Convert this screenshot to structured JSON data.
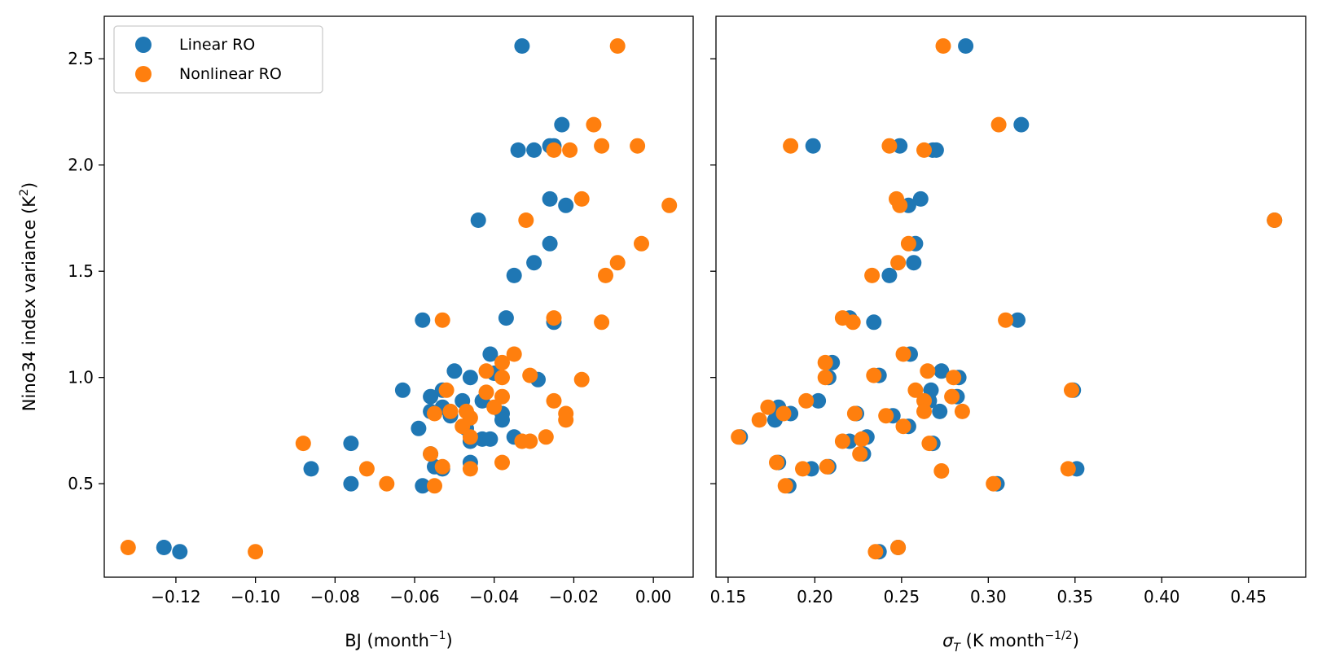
{
  "chart_data": [
    {
      "type": "scatter",
      "xlabel_main": "BJ (month",
      "xlabel_sup": "−1",
      "xlabel_tail": ")",
      "ylabel_main": "Nino34 index variance (K",
      "ylabel_sup": "2",
      "ylabel_tail": ")",
      "xlim": [
        -0.138,
        0.01
      ],
      "ylim": [
        0.06,
        2.7
      ],
      "xticks": [
        -0.12,
        -0.1,
        -0.08,
        -0.06,
        -0.04,
        -0.02,
        0.0
      ],
      "xtick_labels": [
        "−0.12",
        "−0.10",
        "−0.08",
        "−0.06",
        "−0.04",
        "−0.02",
        "0.00"
      ],
      "yticks": [
        0.5,
        1.0,
        1.5,
        2.0,
        2.5
      ],
      "ytick_labels": [
        "0.5",
        "1.0",
        "1.5",
        "2.0",
        "2.5"
      ],
      "legend": {
        "placement": "top-left",
        "entries": [
          "Linear RO",
          "Nonlinear RO"
        ]
      },
      "series": [
        {
          "name": "Linear RO",
          "color": "#1f77b4",
          "points": [
            [
              -0.033,
              2.56
            ],
            [
              -0.023,
              2.19
            ],
            [
              -0.034,
              2.07
            ],
            [
              -0.03,
              2.07
            ],
            [
              -0.026,
              2.09
            ],
            [
              -0.025,
              2.09
            ],
            [
              -0.026,
              1.84
            ],
            [
              -0.022,
              1.81
            ],
            [
              -0.044,
              1.74
            ],
            [
              -0.026,
              1.63
            ],
            [
              -0.03,
              1.54
            ],
            [
              -0.035,
              1.48
            ],
            [
              -0.058,
              1.27
            ],
            [
              -0.037,
              1.28
            ],
            [
              -0.025,
              1.26
            ],
            [
              -0.041,
              1.11
            ],
            [
              -0.05,
              1.03
            ],
            [
              -0.04,
              1.02
            ],
            [
              -0.046,
              1.0
            ],
            [
              -0.029,
              0.99
            ],
            [
              -0.063,
              0.94
            ],
            [
              -0.053,
              0.94
            ],
            [
              -0.056,
              0.91
            ],
            [
              -0.048,
              0.89
            ],
            [
              -0.043,
              0.89
            ],
            [
              -0.053,
              0.86
            ],
            [
              -0.056,
              0.84
            ],
            [
              -0.051,
              0.82
            ],
            [
              -0.038,
              0.83
            ],
            [
              -0.038,
              0.8
            ],
            [
              -0.059,
              0.76
            ],
            [
              -0.047,
              0.76
            ],
            [
              -0.043,
              0.71
            ],
            [
              -0.041,
              0.71
            ],
            [
              -0.035,
              0.72
            ],
            [
              -0.046,
              0.7
            ],
            [
              -0.076,
              0.69
            ],
            [
              -0.056,
              0.64
            ],
            [
              -0.046,
              0.6
            ],
            [
              -0.086,
              0.57
            ],
            [
              -0.055,
              0.58
            ],
            [
              -0.053,
              0.57
            ],
            [
              -0.076,
              0.5
            ],
            [
              -0.058,
              0.49
            ],
            [
              -0.123,
              0.2
            ],
            [
              -0.119,
              0.18
            ]
          ]
        },
        {
          "name": "Nonlinear RO",
          "color": "#ff7f0e",
          "points": [
            [
              -0.009,
              2.56
            ],
            [
              -0.015,
              2.19
            ],
            [
              -0.025,
              2.07
            ],
            [
              -0.021,
              2.07
            ],
            [
              -0.013,
              2.09
            ],
            [
              -0.004,
              2.09
            ],
            [
              -0.018,
              1.84
            ],
            [
              0.004,
              1.81
            ],
            [
              -0.032,
              1.74
            ],
            [
              -0.003,
              1.63
            ],
            [
              -0.009,
              1.54
            ],
            [
              -0.012,
              1.48
            ],
            [
              -0.053,
              1.27
            ],
            [
              -0.025,
              1.28
            ],
            [
              -0.013,
              1.26
            ],
            [
              -0.035,
              1.11
            ],
            [
              -0.042,
              1.03
            ],
            [
              -0.038,
              1.07
            ],
            [
              -0.038,
              1.0
            ],
            [
              -0.031,
              1.01
            ],
            [
              -0.018,
              0.99
            ],
            [
              -0.052,
              0.94
            ],
            [
              -0.042,
              0.93
            ],
            [
              -0.038,
              0.91
            ],
            [
              -0.025,
              0.89
            ],
            [
              -0.04,
              0.86
            ],
            [
              -0.055,
              0.83
            ],
            [
              -0.051,
              0.84
            ],
            [
              -0.047,
              0.84
            ],
            [
              -0.046,
              0.81
            ],
            [
              -0.022,
              0.83
            ],
            [
              -0.022,
              0.8
            ],
            [
              -0.048,
              0.77
            ],
            [
              -0.046,
              0.72
            ],
            [
              -0.033,
              0.7
            ],
            [
              -0.031,
              0.7
            ],
            [
              -0.027,
              0.72
            ],
            [
              -0.088,
              0.69
            ],
            [
              -0.056,
              0.64
            ],
            [
              -0.038,
              0.6
            ],
            [
              -0.072,
              0.57
            ],
            [
              -0.053,
              0.58
            ],
            [
              -0.046,
              0.57
            ],
            [
              -0.067,
              0.5
            ],
            [
              -0.055,
              0.49
            ],
            [
              -0.132,
              0.2
            ],
            [
              -0.1,
              0.18
            ]
          ]
        }
      ]
    },
    {
      "type": "scatter",
      "xlabel_sym": "σ",
      "xlabel_sub": "T",
      "xlabel_main": " (K month",
      "xlabel_sup": "−1/2",
      "xlabel_tail": ")",
      "xlim": [
        0.143,
        0.483
      ],
      "ylim": [
        0.06,
        2.7
      ],
      "xticks": [
        0.15,
        0.2,
        0.25,
        0.3,
        0.35,
        0.4,
        0.45
      ],
      "xtick_labels": [
        "0.15",
        "0.20",
        "0.25",
        "0.30",
        "0.35",
        "0.40",
        "0.45"
      ],
      "yticks": [
        0.5,
        1.0,
        1.5,
        2.0,
        2.5
      ],
      "shared_y": true,
      "series": [
        {
          "name": "Linear RO",
          "color": "#1f77b4",
          "points": [
            [
              0.287,
              2.56
            ],
            [
              0.319,
              2.19
            ],
            [
              0.199,
              2.09
            ],
            [
              0.249,
              2.09
            ],
            [
              0.268,
              2.07
            ],
            [
              0.27,
              2.07
            ],
            [
              0.261,
              1.84
            ],
            [
              0.254,
              1.81
            ],
            [
              0.465,
              1.74
            ],
            [
              0.258,
              1.63
            ],
            [
              0.257,
              1.54
            ],
            [
              0.243,
              1.48
            ],
            [
              0.22,
              1.28
            ],
            [
              0.317,
              1.27
            ],
            [
              0.234,
              1.26
            ],
            [
              0.255,
              1.11
            ],
            [
              0.21,
              1.07
            ],
            [
              0.273,
              1.03
            ],
            [
              0.237,
              1.01
            ],
            [
              0.208,
              1.0
            ],
            [
              0.283,
              1.0
            ],
            [
              0.267,
              0.94
            ],
            [
              0.349,
              0.94
            ],
            [
              0.282,
              0.91
            ],
            [
              0.202,
              0.89
            ],
            [
              0.266,
              0.89
            ],
            [
              0.179,
              0.86
            ],
            [
              0.186,
              0.83
            ],
            [
              0.224,
              0.83
            ],
            [
              0.245,
              0.82
            ],
            [
              0.272,
              0.84
            ],
            [
              0.177,
              0.8
            ],
            [
              0.254,
              0.77
            ],
            [
              0.157,
              0.72
            ],
            [
              0.23,
              0.72
            ],
            [
              0.22,
              0.7
            ],
            [
              0.268,
              0.69
            ],
            [
              0.228,
              0.64
            ],
            [
              0.179,
              0.6
            ],
            [
              0.351,
              0.57
            ],
            [
              0.198,
              0.57
            ],
            [
              0.208,
              0.58
            ],
            [
              0.305,
              0.5
            ],
            [
              0.185,
              0.49
            ],
            [
              0.248,
              0.2
            ],
            [
              0.237,
              0.18
            ]
          ]
        },
        {
          "name": "Nonlinear RO",
          "color": "#ff7f0e",
          "points": [
            [
              0.274,
              2.56
            ],
            [
              0.306,
              2.19
            ],
            [
              0.186,
              2.09
            ],
            [
              0.243,
              2.09
            ],
            [
              0.263,
              2.07
            ],
            [
              0.247,
              1.84
            ],
            [
              0.249,
              1.81
            ],
            [
              0.465,
              1.74
            ],
            [
              0.254,
              1.63
            ],
            [
              0.248,
              1.54
            ],
            [
              0.233,
              1.48
            ],
            [
              0.216,
              1.28
            ],
            [
              0.31,
              1.27
            ],
            [
              0.222,
              1.26
            ],
            [
              0.251,
              1.11
            ],
            [
              0.206,
              1.07
            ],
            [
              0.265,
              1.03
            ],
            [
              0.234,
              1.01
            ],
            [
              0.206,
              1.0
            ],
            [
              0.28,
              1.0
            ],
            [
              0.258,
              0.94
            ],
            [
              0.348,
              0.94
            ],
            [
              0.279,
              0.91
            ],
            [
              0.195,
              0.89
            ],
            [
              0.263,
              0.89
            ],
            [
              0.173,
              0.86
            ],
            [
              0.263,
              0.84
            ],
            [
              0.285,
              0.84
            ],
            [
              0.182,
              0.83
            ],
            [
              0.223,
              0.83
            ],
            [
              0.241,
              0.82
            ],
            [
              0.168,
              0.8
            ],
            [
              0.251,
              0.77
            ],
            [
              0.156,
              0.72
            ],
            [
              0.227,
              0.71
            ],
            [
              0.216,
              0.7
            ],
            [
              0.266,
              0.69
            ],
            [
              0.226,
              0.64
            ],
            [
              0.178,
              0.6
            ],
            [
              0.346,
              0.57
            ],
            [
              0.193,
              0.57
            ],
            [
              0.207,
              0.58
            ],
            [
              0.303,
              0.5
            ],
            [
              0.183,
              0.49
            ],
            [
              0.273,
              0.56
            ],
            [
              0.248,
              0.2
            ],
            [
              0.235,
              0.18
            ]
          ]
        }
      ]
    }
  ]
}
